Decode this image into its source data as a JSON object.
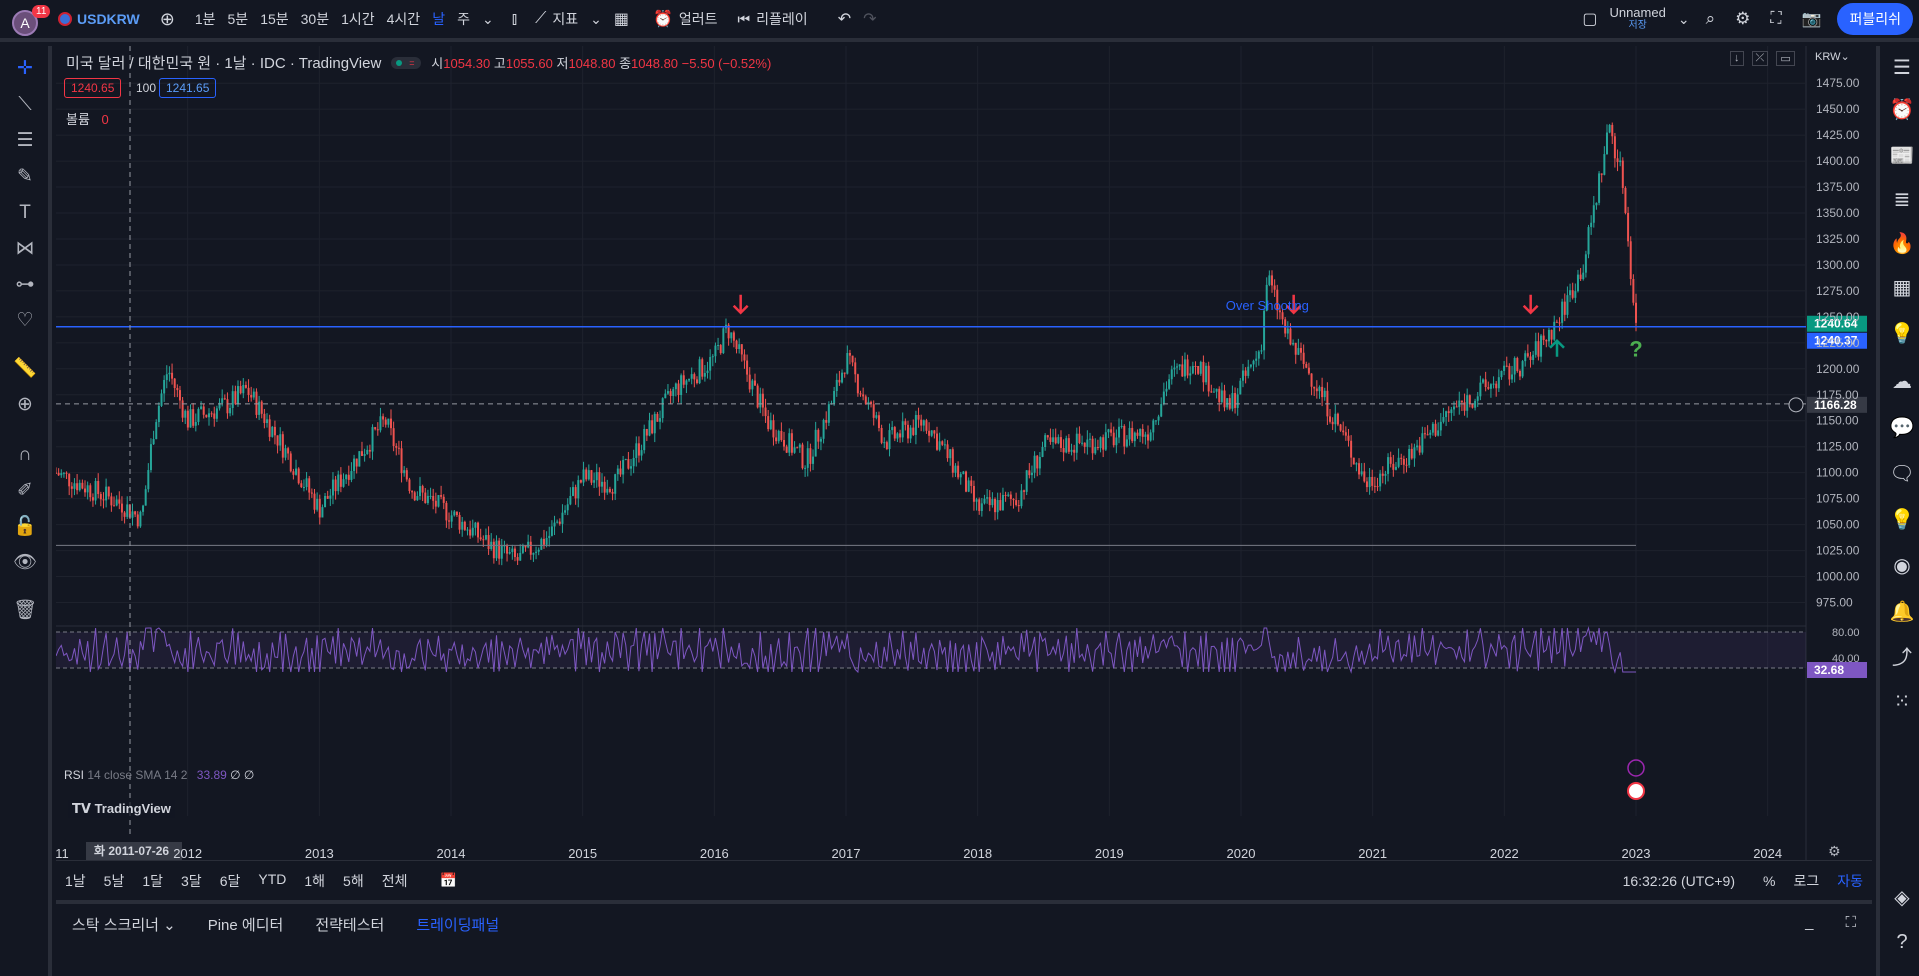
{
  "header": {
    "avatar_letter": "A",
    "notif_count": "11",
    "symbol": "USDKRW",
    "intervals": [
      "1분",
      "5분",
      "15분",
      "30분",
      "1시간",
      "4시간",
      "날",
      "주"
    ],
    "active_interval": "날",
    "indicators_label": "지표",
    "alert_label": "얼러트",
    "replay_label": "리플레이",
    "layout_name": "Unnamed",
    "layout_sub": "저장",
    "publish_label": "퍼블리쉬"
  },
  "legend": {
    "title": "미국 달러 / 대한민국 원 · 1날 · IDC · TradingView",
    "open_label": "시",
    "open": "1054.30",
    "high_label": "고",
    "high": "1055.60",
    "low_label": "저",
    "low": "1048.80",
    "close_label": "종",
    "close": "1048.80",
    "change": "−5.50 (−0.52%)",
    "bid": "1240.65",
    "spread": "100",
    "ask": "1241.65",
    "volume_label": "볼륨",
    "volume_value": "0"
  },
  "rsi_legend": {
    "label": "RSI",
    "params": "14 close SMA 14 2",
    "value": "33.89",
    "extra": "∅ ∅"
  },
  "watermark": "TradingView",
  "currency": "KRW",
  "annotation": "Over Shooting",
  "question_mark": "?",
  "price_labels": {
    "h_line_top": "1240.64",
    "h_line_bottom": "1240.37",
    "crosshair": "1166.28",
    "rsi_value": "32.68"
  },
  "crosshair_date": "화 2011-07-26",
  "bottombar": {
    "ranges": [
      "1날",
      "5날",
      "1달",
      "3달",
      "6달",
      "YTD",
      "1해",
      "5해",
      "전체"
    ],
    "time": "16:32:26 (UTC+9)",
    "percent": "%",
    "log": "로그",
    "auto": "자동"
  },
  "panel": {
    "tabs": [
      "스탁 스크리너",
      "Pine 에디터",
      "전략테스터",
      "트레이딩패널"
    ],
    "active_tab": "트레이딩패널"
  },
  "chart_data": {
    "type": "candlestick",
    "symbol": "USDKRW",
    "x_ticks": [
      "11",
      "2012",
      "2013",
      "2014",
      "2015",
      "2016",
      "2017",
      "2018",
      "2019",
      "2020",
      "2021",
      "2022",
      "2023",
      "2024"
    ],
    "y_ticks": [
      "1475.00",
      "1450.00",
      "1425.00",
      "1400.00",
      "1375.00",
      "1350.00",
      "1325.00",
      "1300.00",
      "1275.00",
      "1250.00",
      "1225.00",
      "1200.00",
      "1175.00",
      "1150.00",
      "1125.00",
      "1100.00",
      "1075.00",
      "1050.00",
      "1025.00",
      "1000.00",
      "975.00"
    ],
    "ylim": [
      962,
      1480
    ],
    "rsi_ticks": [
      "80.00",
      "40.00"
    ],
    "approx_path": [
      [
        2011.0,
        1100
      ],
      [
        2011.5,
        1070
      ],
      [
        2011.65,
        1055
      ],
      [
        2011.75,
        1150
      ],
      [
        2011.85,
        1200
      ],
      [
        2012.0,
        1150
      ],
      [
        2012.3,
        1165
      ],
      [
        2012.45,
        1180
      ],
      [
        2012.7,
        1130
      ],
      [
        2013.0,
        1065
      ],
      [
        2013.2,
        1100
      ],
      [
        2013.5,
        1150
      ],
      [
        2013.7,
        1085
      ],
      [
        2014.0,
        1060
      ],
      [
        2014.3,
        1030
      ],
      [
        2014.5,
        1015
      ],
      [
        2014.75,
        1040
      ],
      [
        2015.0,
        1095
      ],
      [
        2015.25,
        1090
      ],
      [
        2015.5,
        1140
      ],
      [
        2015.7,
        1180
      ],
      [
        2016.0,
        1210
      ],
      [
        2016.1,
        1240
      ],
      [
        2016.4,
        1150
      ],
      [
        2016.7,
        1110
      ],
      [
        2016.9,
        1170
      ],
      [
        2017.0,
        1210
      ],
      [
        2017.3,
        1130
      ],
      [
        2017.6,
        1150
      ],
      [
        2017.9,
        1090
      ],
      [
        2018.0,
        1065
      ],
      [
        2018.3,
        1075
      ],
      [
        2018.5,
        1125
      ],
      [
        2018.9,
        1130
      ],
      [
        2019.3,
        1140
      ],
      [
        2019.45,
        1190
      ],
      [
        2019.65,
        1210
      ],
      [
        2019.9,
        1160
      ],
      [
        2020.15,
        1220
      ],
      [
        2020.2,
        1290
      ],
      [
        2020.35,
        1230
      ],
      [
        2020.55,
        1190
      ],
      [
        2020.8,
        1130
      ],
      [
        2020.95,
        1090
      ],
      [
        2021.3,
        1120
      ],
      [
        2021.6,
        1160
      ],
      [
        2021.9,
        1185
      ],
      [
        2022.2,
        1210
      ],
      [
        2022.4,
        1245
      ],
      [
        2022.6,
        1300
      ],
      [
        2022.8,
        1435
      ],
      [
        2022.9,
        1380
      ],
      [
        2023.0,
        1240
      ]
    ],
    "annotations": {
      "resistance": 1240.5,
      "support": 1030,
      "crosshair_price": 1166.28,
      "down_arrows": [
        "2016",
        "2020",
        "2022"
      ],
      "up_arrow": "2022",
      "text": "Over Shooting"
    }
  }
}
